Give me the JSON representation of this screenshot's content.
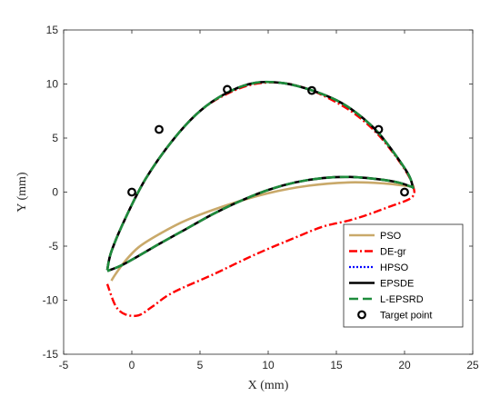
{
  "chart_data": {
    "type": "line",
    "title": "",
    "xlabel": "X (mm)",
    "ylabel": "Y (mm)",
    "xlim": [
      -5,
      25
    ],
    "ylim": [
      -15,
      15
    ],
    "xticks": [
      -5,
      0,
      5,
      10,
      15,
      20,
      25
    ],
    "yticks": [
      -15,
      -10,
      -5,
      0,
      5,
      10,
      15
    ],
    "grid": false,
    "legend_position": "bottom-right",
    "series": [
      {
        "name": "PSO",
        "color": "#c9a96a",
        "style": "solid",
        "x": [
          -1.5,
          -1.2,
          -0.5,
          0.5,
          2,
          4,
          7,
          10,
          13,
          16,
          18.5,
          20.3,
          20.7
        ],
        "y": [
          -8.2,
          -7.6,
          -6.4,
          -5.1,
          -3.9,
          -2.6,
          -1.2,
          -0.1,
          0.6,
          0.9,
          0.8,
          0.55,
          0.5
        ]
      },
      {
        "name": "DE-gr",
        "color": "#ff0000",
        "style": "dashdot",
        "x": [
          -1.8,
          -1.5,
          -0.5,
          1,
          3,
          5,
          7,
          9,
          11,
          13,
          15,
          16.5,
          18,
          19.3,
          20.3,
          20.7,
          20.6,
          20.1,
          19,
          17.5,
          16,
          14,
          12,
          9,
          6,
          3,
          1.5,
          0.5,
          -0.5,
          -1.2,
          -1.8
        ],
        "y": [
          -7.2,
          -5.5,
          -2.5,
          1.2,
          4.8,
          7.5,
          9.1,
          10.0,
          10.1,
          9.5,
          8.3,
          7.1,
          5.4,
          3.4,
          1.5,
          0.2,
          -0.4,
          -0.8,
          -1.3,
          -2.0,
          -2.6,
          -3.2,
          -4.2,
          -5.8,
          -7.6,
          -9.3,
          -10.6,
          -11.4,
          -11.3,
          -10.5,
          -8.5
        ]
      },
      {
        "name": "HPSO",
        "color": "#0000ff",
        "style": "dotted",
        "x": [
          -1.8,
          -1.5,
          -0.5,
          1,
          3,
          5,
          7,
          9,
          11,
          13,
          15,
          16.5,
          18,
          19.3,
          20.3,
          20.6,
          20.5,
          19.5,
          18,
          16,
          14,
          12,
          10,
          8,
          6,
          4,
          2,
          0.5,
          -0.8,
          -1.8
        ],
        "y": [
          -7.2,
          -5.5,
          -2.5,
          1.2,
          4.8,
          7.5,
          9.2,
          10.1,
          10.1,
          9.5,
          8.5,
          7.3,
          5.6,
          3.5,
          1.6,
          0.5,
          0.5,
          0.9,
          1.2,
          1.4,
          1.3,
          0.9,
          0.2,
          -0.8,
          -2.0,
          -3.4,
          -4.8,
          -5.9,
          -6.8,
          -7.3
        ]
      },
      {
        "name": "EPSDE",
        "color": "#000000",
        "style": "solid",
        "x": [
          -1.8,
          -1.5,
          -0.5,
          1,
          3,
          5,
          7,
          9,
          11,
          13,
          15,
          16.5,
          18,
          19.3,
          20.3,
          20.6,
          20.5,
          19.5,
          18,
          16,
          14,
          12,
          10,
          8,
          6,
          4,
          2,
          0.5,
          -0.8,
          -1.8
        ],
        "y": [
          -7.2,
          -5.5,
          -2.5,
          1.2,
          4.8,
          7.5,
          9.2,
          10.1,
          10.1,
          9.5,
          8.5,
          7.3,
          5.6,
          3.5,
          1.6,
          0.5,
          0.5,
          0.9,
          1.2,
          1.4,
          1.3,
          0.9,
          0.2,
          -0.8,
          -2.0,
          -3.4,
          -4.8,
          -5.9,
          -6.8,
          -7.3
        ]
      },
      {
        "name": "L-EPSRD",
        "color": "#1e8c3c",
        "style": "dashed",
        "x": [
          -1.8,
          -1.5,
          -0.5,
          1,
          3,
          5,
          7,
          9,
          11,
          13,
          15,
          16.5,
          18,
          19.3,
          20.3,
          20.6,
          20.5,
          19.5,
          18,
          16,
          14,
          12,
          10,
          8,
          6,
          4,
          2,
          0.5,
          -0.8,
          -1.8
        ],
        "y": [
          -7.2,
          -5.5,
          -2.5,
          1.2,
          4.8,
          7.5,
          9.2,
          10.1,
          10.1,
          9.5,
          8.5,
          7.3,
          5.6,
          3.5,
          1.6,
          0.5,
          0.5,
          0.9,
          1.2,
          1.4,
          1.3,
          0.9,
          0.2,
          -0.8,
          -2.0,
          -3.4,
          -4.8,
          -5.9,
          -6.8,
          -7.3
        ]
      },
      {
        "name": "Target point",
        "color": "#000000",
        "style": "marker-circle",
        "x": [
          0,
          2,
          7,
          13.2,
          18.1,
          20
        ],
        "y": [
          0,
          5.8,
          9.5,
          9.4,
          5.8,
          0
        ]
      }
    ]
  }
}
